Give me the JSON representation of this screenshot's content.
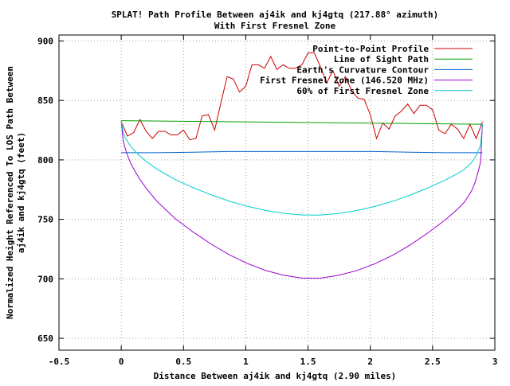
{
  "chart_data": {
    "type": "line",
    "title": "SPLAT! Path Profile Between aj4ik and kj4gtq (217.88° azimuth)",
    "subtitle": "With First Fresnel Zone",
    "xlabel": "Distance Between aj4ik and kj4gtq (2.90 miles)",
    "ylabel_line1": "Normalized Height Referenced To LOS Path Between",
    "ylabel_line2": "aj4ik and kj4gtq (feet)",
    "xlim": [
      -0.5,
      3
    ],
    "ylim": [
      640,
      905
    ],
    "xticks": [
      -0.5,
      0,
      0.5,
      1,
      1.5,
      2,
      2.5,
      3
    ],
    "xtick_labels": [
      "-0.5",
      "0",
      "0.5",
      "1",
      "1.5",
      "2",
      "2.5",
      "3"
    ],
    "yticks": [
      650,
      700,
      750,
      800,
      850,
      900
    ],
    "ytick_labels": [
      "650",
      "700",
      "750",
      "800",
      "850",
      "900"
    ],
    "grid": true,
    "legend_position": "top-right",
    "series": [
      {
        "name": "Point-to-Point Profile",
        "color": "#cc0000",
        "x": [
          0,
          0.05,
          0.1,
          0.15,
          0.2,
          0.25,
          0.3,
          0.35,
          0.4,
          0.45,
          0.5,
          0.55,
          0.6,
          0.65,
          0.7,
          0.75,
          0.8,
          0.85,
          0.9,
          0.95,
          1.0,
          1.05,
          1.1,
          1.15,
          1.2,
          1.25,
          1.3,
          1.35,
          1.4,
          1.45,
          1.5,
          1.55,
          1.6,
          1.65,
          1.7,
          1.75,
          1.8,
          1.85,
          1.9,
          1.95,
          2.0,
          2.05,
          2.1,
          2.15,
          2.2,
          2.25,
          2.3,
          2.35,
          2.4,
          2.45,
          2.5,
          2.55,
          2.6,
          2.65,
          2.7,
          2.75,
          2.8,
          2.85,
          2.9
        ],
        "y": [
          832,
          820,
          823,
          834,
          824,
          818,
          824,
          824,
          821,
          821,
          825,
          817,
          818,
          837,
          838,
          825,
          848,
          870,
          868,
          857,
          862,
          880,
          880,
          877,
          887,
          876,
          880,
          877,
          877,
          880,
          890,
          890,
          878,
          865,
          875,
          862,
          870,
          858,
          852,
          851,
          838,
          818,
          831,
          826,
          837,
          841,
          847,
          839,
          846,
          846,
          842,
          825,
          822,
          830,
          826,
          818,
          830,
          818,
          832
        ]
      },
      {
        "name": "Line of Sight Path",
        "color": "#00a000",
        "x": [
          0,
          2.9
        ],
        "y": [
          833,
          830
        ]
      },
      {
        "name": "Earth's Curvature Contour",
        "color": "#0066cc",
        "x": [
          0,
          0.29,
          0.58,
          0.87,
          1.16,
          1.45,
          1.74,
          2.03,
          2.32,
          2.61,
          2.9
        ],
        "y": [
          806,
          806,
          806.5,
          807,
          807,
          807,
          807,
          807,
          806.5,
          806,
          806
        ]
      },
      {
        "name": "First Fresnel Zone (146.520 MHz)",
        "color": "#9900cc",
        "x": [
          0,
          0.0145,
          0.029,
          0.058,
          0.087,
          0.145,
          0.203,
          0.29,
          0.435,
          0.58,
          0.725,
          0.87,
          1.015,
          1.16,
          1.305,
          1.45,
          1.595,
          1.74,
          1.885,
          2.03,
          2.175,
          2.32,
          2.465,
          2.61,
          2.697,
          2.755,
          2.813,
          2.842,
          2.871,
          2.8855,
          2.9
        ],
        "y": [
          833,
          817.1,
          810.6,
          801.6,
          794.9,
          784.3,
          775.7,
          764.8,
          750.5,
          739.1,
          729.0,
          720.1,
          712.8,
          707.0,
          703.0,
          700.6,
          700.5,
          702.9,
          706.7,
          712.4,
          719.6,
          728.5,
          738.8,
          750.2,
          758.3,
          764.5,
          773.9,
          781.3,
          791.9,
          798.4,
          830
        ]
      },
      {
        "name": "60% of First Fresnel Zone",
        "color": "#00cccc",
        "x": [
          0,
          0.0145,
          0.029,
          0.058,
          0.087,
          0.145,
          0.203,
          0.29,
          0.435,
          0.58,
          0.725,
          0.87,
          1.015,
          1.16,
          1.305,
          1.45,
          1.595,
          1.74,
          1.885,
          2.03,
          2.175,
          2.32,
          2.465,
          2.61,
          2.697,
          2.755,
          2.813,
          2.842,
          2.871,
          2.8855,
          2.9
        ],
        "y": [
          833,
          823.5,
          819.5,
          814.1,
          810.1,
          803.7,
          798.5,
          792.0,
          783.4,
          776.6,
          770.5,
          765.2,
          760.9,
          757.5,
          755.1,
          753.7,
          753.6,
          755.0,
          757.3,
          760.7,
          765.0,
          770.4,
          776.6,
          783.4,
          788.3,
          792.0,
          797.7,
          802.1,
          808.5,
          812.4,
          830
        ]
      }
    ]
  }
}
